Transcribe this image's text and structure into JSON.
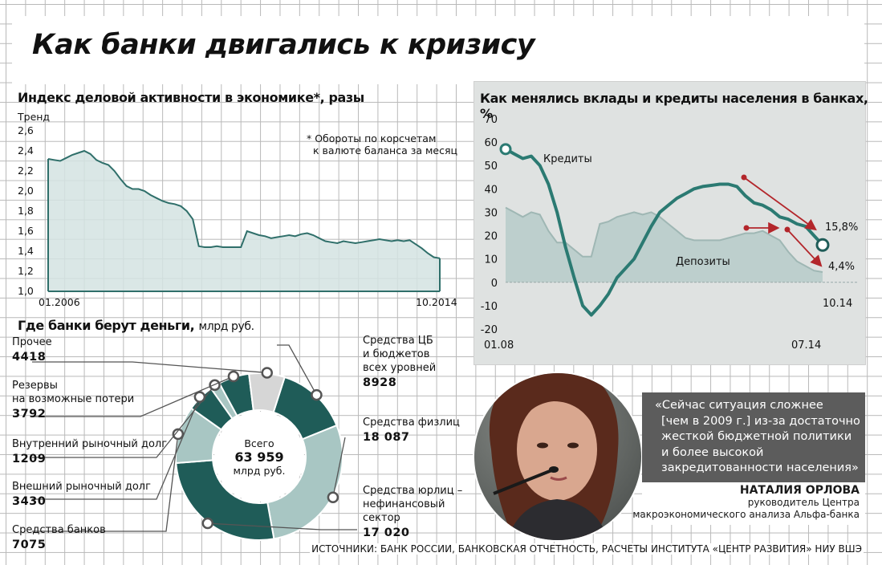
{
  "title": "Как банки двигались к кризису",
  "chart_data": [
    {
      "type": "area",
      "title": "Индекс деловой активности в экономике*, разы",
      "ylabel": "Тренд",
      "note": "* Обороты по корсчетам к валюте баланса за месяц",
      "note_lines": [
        "* Обороты по корсчетам",
        "к валюте баланса за месяц"
      ],
      "ylim": [
        1.0,
        2.6
      ],
      "yticks": [
        "2,6",
        "2,4",
        "2,2",
        "2,0",
        "1,8",
        "1,6",
        "1,4",
        "1,2",
        "1,0"
      ],
      "xticks": [
        "01.2006",
        "10.2014"
      ],
      "x_start": "01.2006",
      "x_end": "10.2014",
      "values": [
        2.32,
        2.31,
        2.3,
        2.33,
        2.36,
        2.38,
        2.4,
        2.37,
        2.31,
        2.28,
        2.26,
        2.2,
        2.12,
        2.05,
        2.02,
        2.02,
        2.0,
        1.96,
        1.93,
        1.9,
        1.88,
        1.87,
        1.85,
        1.8,
        1.72,
        1.45,
        1.44,
        1.44,
        1.45,
        1.44,
        1.44,
        1.44,
        1.44,
        1.6,
        1.58,
        1.56,
        1.55,
        1.53,
        1.54,
        1.55,
        1.56,
        1.55,
        1.57,
        1.58,
        1.56,
        1.53,
        1.5,
        1.49,
        1.48,
        1.5,
        1.49,
        1.48,
        1.49,
        1.5,
        1.51,
        1.52,
        1.51,
        1.5,
        1.51,
        1.5,
        1.51,
        1.47,
        1.43,
        1.38,
        1.34,
        1.33
      ],
      "grid": true
    },
    {
      "type": "line",
      "title": "Как менялись вклады и кредиты населения в банках, %",
      "ylim": [
        -20,
        70
      ],
      "yticks": [
        "70",
        "60",
        "50",
        "40",
        "30",
        "20",
        "10",
        "0",
        "-10",
        "-20"
      ],
      "xticks": [
        "01.08",
        "07.14"
      ],
      "x_right_label": "10.14",
      "series": [
        {
          "name": "Кредиты",
          "color": "#2b7a72",
          "values": [
            57,
            55,
            53,
            54,
            50,
            42,
            30,
            15,
            2,
            -10,
            -14,
            -10,
            -5,
            2,
            6,
            10,
            17,
            24,
            30,
            33,
            36,
            38,
            40,
            41,
            41.5,
            42,
            42,
            41,
            37,
            34,
            33,
            31,
            28,
            27,
            25,
            24,
            20,
            16
          ],
          "end_label": "15,8%"
        },
        {
          "name": "Депозиты",
          "color": "#9fb7b4",
          "values": [
            32,
            30,
            28,
            30,
            29,
            22,
            17,
            17,
            14,
            11,
            11,
            25,
            26,
            28,
            29,
            30,
            29,
            30,
            28,
            25,
            22,
            19,
            18,
            18,
            18,
            18,
            19,
            20,
            21,
            21,
            22,
            20,
            18,
            13,
            9,
            7,
            5,
            4.4
          ],
          "end_label": "4,4%"
        }
      ],
      "grid": true
    },
    {
      "type": "pie",
      "title": "Где банки берут деньги",
      "unit": "млрд руб.",
      "center_lines": [
        "Всего",
        "63 959",
        "млрд руб."
      ],
      "center_total": "63 959",
      "slices": [
        {
          "label": "Средства ЦБ и бюджетов всех уровней",
          "label_lines": [
            "Средства ЦБ",
            "и бюджетов",
            "всех уровней"
          ],
          "value": 8928,
          "value_text": "8928",
          "color": "#1f5c58"
        },
        {
          "label": "Средства физлиц",
          "label_lines": [
            "Средства физлиц"
          ],
          "value": 18087,
          "value_text": "18 087",
          "color": "#a8c6c3"
        },
        {
          "label": "Средства юрлиц – нефинансовый сектор",
          "label_lines": [
            "Средства юрлиц –",
            "нефинансовый",
            "сектор"
          ],
          "value": 17020,
          "value_text": "17 020",
          "color": "#1f5c58"
        },
        {
          "label": "Средства банков",
          "label_lines": [
            "Средства банков"
          ],
          "value": 7075,
          "value_text": "7075",
          "color": "#a8c6c3"
        },
        {
          "label": "Внешний рыночный долг",
          "label_lines": [
            "Внешний рыночный долг"
          ],
          "value": 3430,
          "value_text": "3430",
          "color": "#1f5c58"
        },
        {
          "label": "Внутренний рыночный долг",
          "label_lines": [
            "Внутренний рыночный долг"
          ],
          "value": 1209,
          "value_text": "1209",
          "color": "#a8c6c3"
        },
        {
          "label": "Резервы на возможные потери",
          "label_lines": [
            "Резервы",
            "на возможные потери"
          ],
          "value": 3792,
          "value_text": "3792",
          "color": "#1f5c58"
        },
        {
          "label": "Прочее",
          "label_lines": [
            "Прочее"
          ],
          "value": 4418,
          "value_text": "4418",
          "color": "#d6d6d6"
        }
      ]
    }
  ],
  "quote": {
    "lines": [
      "«Сейчас ситуация сложнее",
      "[чем в 2009 г.] из-за достаточно",
      "жесткой бюджетной политики",
      "и более высокой",
      "закредитованности населения»"
    ],
    "author_name": "НАТАЛИЯ ОРЛОВА",
    "author_position_lines": [
      "руководитель Центра",
      "макроэкономического анализа Альфа-банка"
    ]
  },
  "sources": "ИСТОЧНИКИ: БАНК РОССИИ, БАНКОВСКАЯ ОТЧЕТНОСТЬ, РАСЧЕТЫ ИНСТИТУТА «ЦЕНТР РАЗВИТИЯ» НИУ ВШЭ",
  "colors": {
    "dark_teal": "#1f5c58",
    "light_teal": "#a8c6c3",
    "line_teal": "#2b7a72",
    "area_fill": "#d3e3e2",
    "arrow_red": "#b3262b",
    "panel_gray": "#dfe2e1"
  }
}
